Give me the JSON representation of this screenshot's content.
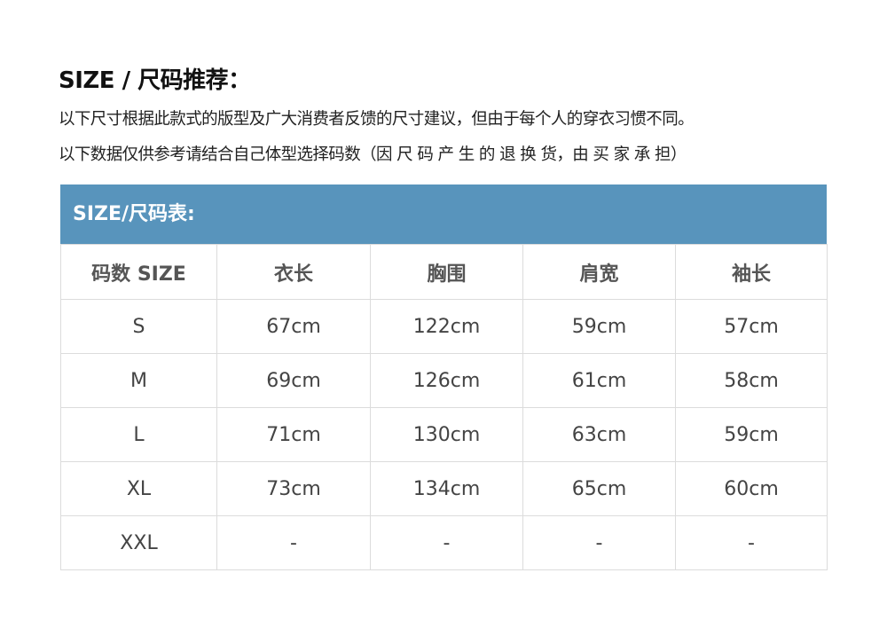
{
  "heading": "SIZE / 尺码推荐：",
  "notes": [
    "以下尺寸根据此款式的版型及广大消费者反馈的尺寸建议，但由于每个人的穿衣习惯不同。",
    "以下数据仅供参考请结合自己体型选择码数（因 尺 码 产 生 的 退 换 货，由 买 家 承 担）"
  ],
  "table": {
    "title": "SIZE/尺码表:",
    "header_color": "#5894bc",
    "columns": [
      "码数 SIZE",
      "衣长",
      "胸围",
      "肩宽",
      "袖长"
    ],
    "rows": [
      [
        "S",
        "67cm",
        "122cm",
        "59cm",
        "57cm"
      ],
      [
        "M",
        "69cm",
        "126cm",
        "61cm",
        "58cm"
      ],
      [
        "L",
        "71cm",
        "130cm",
        "63cm",
        "59cm"
      ],
      [
        "XL",
        "73cm",
        "134cm",
        "65cm",
        "60cm"
      ],
      [
        "XXL",
        "-",
        "-",
        "-",
        "-"
      ]
    ]
  }
}
